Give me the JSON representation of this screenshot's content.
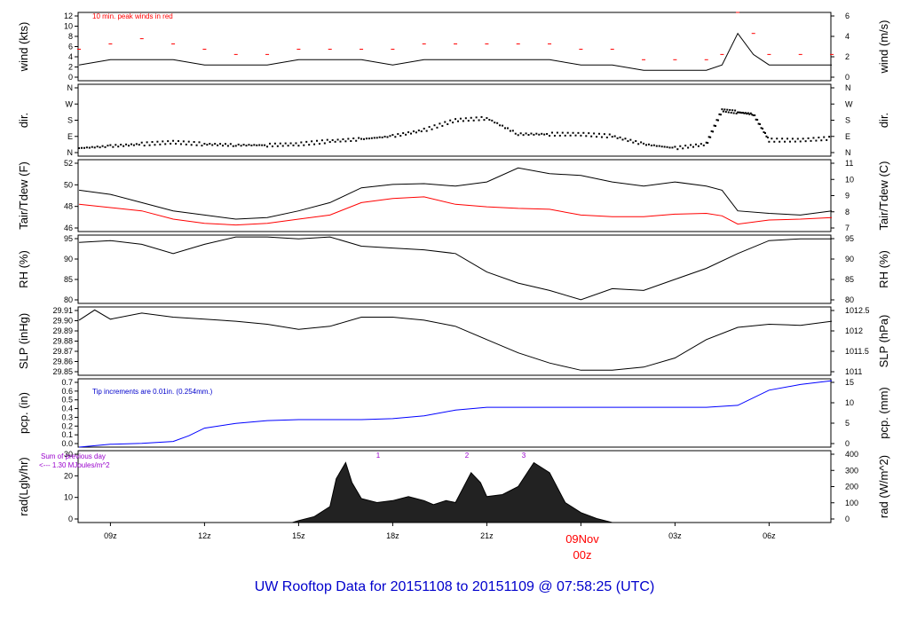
{
  "footer_title": "UW Rooftop Data for 20151108  to  20151109 @ 07:58:25  (UTC)",
  "date_label": "09Nov",
  "date_sub": "00z",
  "x_ticks": [
    "09z",
    "12z",
    "15z",
    "18z",
    "21z",
    "00z",
    "03z",
    "06z"
  ],
  "notes": {
    "wind": "10 min. peak winds in red",
    "pcp": "Tip increments are 0.01in. (0.254mm.)",
    "rad_sum1": "Sum of previous day",
    "rad_sum2": "<--- 1.30 MJoules/m^2",
    "rad_marks": [
      "1",
      "2",
      "3"
    ]
  },
  "colors": {
    "wind_peak": "#ff0000",
    "tdew": "#ff0000",
    "pcp": "#0000ff",
    "note_blue": "#0000cc",
    "rad_note": "#9900cc",
    "footer": "#0000cc",
    "date": "#ff0000"
  },
  "chart_data": {
    "type": "line",
    "x_range_hours_utc": [
      7.97,
      31.97
    ],
    "x_tick_hours": [
      9,
      12,
      15,
      18,
      21,
      24,
      27,
      30
    ],
    "panels": [
      {
        "id": "wind",
        "ylabel_left": "wind (kts)",
        "ylabel_right": "wind (m/s)",
        "ylim": [
          0,
          13
        ],
        "left_ticks": [
          "0",
          "2",
          "4",
          "6",
          "8",
          "10",
          "12"
        ],
        "right_ticks": [
          "0",
          "2",
          "4",
          "6"
        ],
        "series": [
          {
            "name": "wind",
            "color": "#000000",
            "x": [
              8,
              9,
              10,
              11,
              12,
              13,
              14,
              15,
              16,
              17,
              18,
              19,
              20,
              21,
              22,
              23,
              24,
              25,
              26,
              27,
              28,
              28.5,
              29,
              29.5,
              30,
              31,
              32
            ],
            "y": [
              3,
              4,
              4,
              4,
              3,
              3,
              3,
              4,
              4,
              4,
              3,
              4,
              4,
              4,
              4,
              4,
              3,
              3,
              2,
              2,
              2,
              3,
              9,
              5,
              3,
              3,
              3
            ]
          },
          {
            "name": "10 min. peak winds",
            "color": "#ff0000",
            "x": [
              8,
              9,
              10,
              11,
              12,
              13,
              14,
              15,
              16,
              17,
              18,
              19,
              20,
              21,
              22,
              23,
              24,
              25,
              26,
              27,
              28,
              28.5,
              29,
              29.5,
              30,
              31,
              32
            ],
            "y": [
              6,
              7,
              8,
              7,
              6,
              5,
              5,
              6,
              6,
              6,
              6,
              7,
              7,
              7,
              7,
              7,
              6,
              6,
              4,
              4,
              4,
              5,
              13,
              9,
              5,
              5,
              5
            ]
          }
        ]
      },
      {
        "id": "dir",
        "ylabel_left": "dir.",
        "ylabel_right": "dir.",
        "ylim": [
          0,
          360
        ],
        "left_ticks": [
          "N",
          "E",
          "S",
          "W",
          "N"
        ],
        "right_ticks": [
          "N",
          "E",
          "S",
          "W",
          "N"
        ],
        "series": [
          {
            "name": "wind direction (deg)",
            "color": "#000000",
            "x": [
              8,
              9,
              10,
              11,
              12,
              13,
              14,
              15,
              16,
              17,
              18,
              19,
              20,
              21,
              22,
              23,
              24,
              25,
              26,
              27,
              28,
              28.5,
              29,
              29.5,
              30,
              31,
              32
            ],
            "y": [
              40,
              50,
              60,
              70,
              60,
              55,
              55,
              60,
              75,
              85,
              100,
              130,
              180,
              190,
              110,
              110,
              110,
              100,
              60,
              40,
              60,
              230,
              220,
              210,
              80,
              80,
              90
            ]
          }
        ]
      },
      {
        "id": "temp",
        "ylabel_left": "Tair/Tdew (F)",
        "ylabel_right": "Tair/Tdew (C)",
        "ylim": [
          44.5,
          53.2
        ],
        "left_ticks": [
          "46",
          "48",
          "50",
          "52"
        ],
        "right_ticks": [
          "7",
          "8",
          "9",
          "10",
          "11"
        ],
        "series": [
          {
            "name": "Tair",
            "color": "#000000",
            "x": [
              8,
              9,
              10,
              11,
              12,
              13,
              14,
              15,
              16,
              17,
              18,
              19,
              20,
              21,
              22,
              23,
              24,
              25,
              26,
              27,
              28,
              28.5,
              29,
              30,
              31,
              32
            ],
            "y": [
              49.5,
              49,
              48,
              47,
              46.5,
              46,
              46.2,
              47,
              48,
              49.8,
              50.2,
              50.3,
              50,
              50.5,
              52.2,
              51.5,
              51.3,
              50.5,
              50,
              50.5,
              50,
              49.5,
              47,
              46.7,
              46.5,
              47
            ]
          },
          {
            "name": "Tdew",
            "color": "#ff0000",
            "x": [
              8,
              9,
              10,
              11,
              12,
              13,
              14,
              15,
              16,
              17,
              18,
              19,
              20,
              21,
              22,
              23,
              24,
              25,
              26,
              27,
              28,
              28.5,
              29,
              30,
              31,
              32
            ],
            "y": [
              47.8,
              47.4,
              47,
              46,
              45.5,
              45.3,
              45.5,
              46,
              46.5,
              48,
              48.5,
              48.7,
              47.8,
              47.5,
              47.3,
              47.2,
              46.5,
              46.3,
              46.3,
              46.6,
              46.7,
              46.4,
              45.4,
              45.9,
              46,
              46.2
            ]
          }
        ]
      },
      {
        "id": "rh",
        "ylabel_left": "RH (%)",
        "ylabel_right": "RH (%)",
        "ylim": [
          77.5,
          96
        ],
        "left_ticks": [
          "80",
          "85",
          "90",
          "95"
        ],
        "right_ticks": [
          "80",
          "85",
          "90",
          "95"
        ],
        "series": [
          {
            "name": "RH",
            "color": "#000000",
            "x": [
              8,
              9,
              10,
              11,
              12,
              13,
              14,
              15,
              16,
              17,
              18,
              19,
              20,
              21,
              22,
              23,
              24,
              25,
              26,
              27,
              28,
              29,
              30,
              31,
              32
            ],
            "y": [
              94,
              94.5,
              93.5,
              91,
              93.5,
              95.5,
              95.5,
              95,
              95.5,
              93,
              92.5,
              92,
              91,
              86,
              83,
              81,
              78.5,
              81.5,
              81,
              84,
              87,
              91,
              94.5,
              95,
              95
            ]
          }
        ]
      },
      {
        "id": "slp",
        "ylabel_left": "SLP (inHg)",
        "ylabel_right": "SLP (hPa)",
        "ylim": [
          29.845,
          29.912
        ],
        "left_ticks": [
          "29.85",
          "29.86",
          "29.87",
          "29.88",
          "29.89",
          "29.90",
          "29.91"
        ],
        "right_ticks": [
          "1011",
          "1011.5",
          "1012",
          "1012.5"
        ],
        "series": [
          {
            "name": "SLP",
            "color": "#000000",
            "x": [
              8,
              8.5,
              9,
              10,
              11,
              12,
              13,
              14,
              15,
              16,
              17,
              18,
              19,
              20,
              21,
              22,
              23,
              24,
              25,
              26,
              27,
              28,
              29,
              30,
              31,
              32
            ],
            "y": [
              29.899,
              29.909,
              29.9,
              29.906,
              29.902,
              29.9,
              29.898,
              29.895,
              29.89,
              29.893,
              29.902,
              29.902,
              29.899,
              29.893,
              29.88,
              29.867,
              29.857,
              29.85,
              29.85,
              29.853,
              29.862,
              29.88,
              29.892,
              29.895,
              29.894,
              29.898
            ]
          }
        ]
      },
      {
        "id": "pcp",
        "ylabel_left": "pcp. (in)",
        "ylabel_right": "pcp. (mm)",
        "ylim": [
          0,
          0.72
        ],
        "left_ticks": [
          "0.0",
          "0.1",
          "0.2",
          "0.3",
          "0.4",
          "0.5",
          "0.6",
          "0.7"
        ],
        "right_ticks": [
          "0",
          "5",
          "10",
          "15"
        ],
        "series": [
          {
            "name": "accumulated precipitation",
            "color": "#0000ff",
            "x": [
              8,
              9,
              10,
              11,
              11.5,
              12,
              13,
              14,
              15,
              16,
              17,
              18,
              19,
              20,
              21,
              22,
              23,
              24,
              25,
              26,
              27,
              28,
              29,
              30,
              31,
              32
            ],
            "y": [
              0.0,
              0.03,
              0.04,
              0.06,
              0.12,
              0.2,
              0.25,
              0.28,
              0.29,
              0.29,
              0.29,
              0.3,
              0.33,
              0.39,
              0.42,
              0.42,
              0.42,
              0.42,
              0.42,
              0.42,
              0.42,
              0.42,
              0.44,
              0.6,
              0.66,
              0.7
            ]
          }
        ]
      },
      {
        "id": "rad",
        "ylabel_left": "rad(Lgly/hr)",
        "ylabel_right": "rad (W/m^2)",
        "ylim": [
          0,
          36
        ],
        "left_ticks": [
          "0",
          "10",
          "20",
          "30"
        ],
        "right_ticks": [
          "0",
          "100",
          "200",
          "300",
          "400"
        ],
        "series": [
          {
            "name": "solar radiation",
            "color": "#000000",
            "x": [
              14.8,
              15,
              15.5,
              16,
              16.2,
              16.5,
              16.7,
              17,
              17.5,
              18,
              18.5,
              19,
              19.3,
              19.7,
              20,
              20.5,
              20.8,
              21,
              21.5,
              22,
              22.5,
              23,
              23.5,
              24,
              24.5,
              25
            ],
            "y": [
              0,
              1,
              3,
              8,
              22,
              30,
              20,
              12,
              10,
              11,
              13,
              11,
              9,
              11,
              10,
              25,
              20,
              13,
              14,
              18,
              30,
              25,
              10,
              5,
              2,
              0
            ]
          }
        ]
      }
    ]
  }
}
